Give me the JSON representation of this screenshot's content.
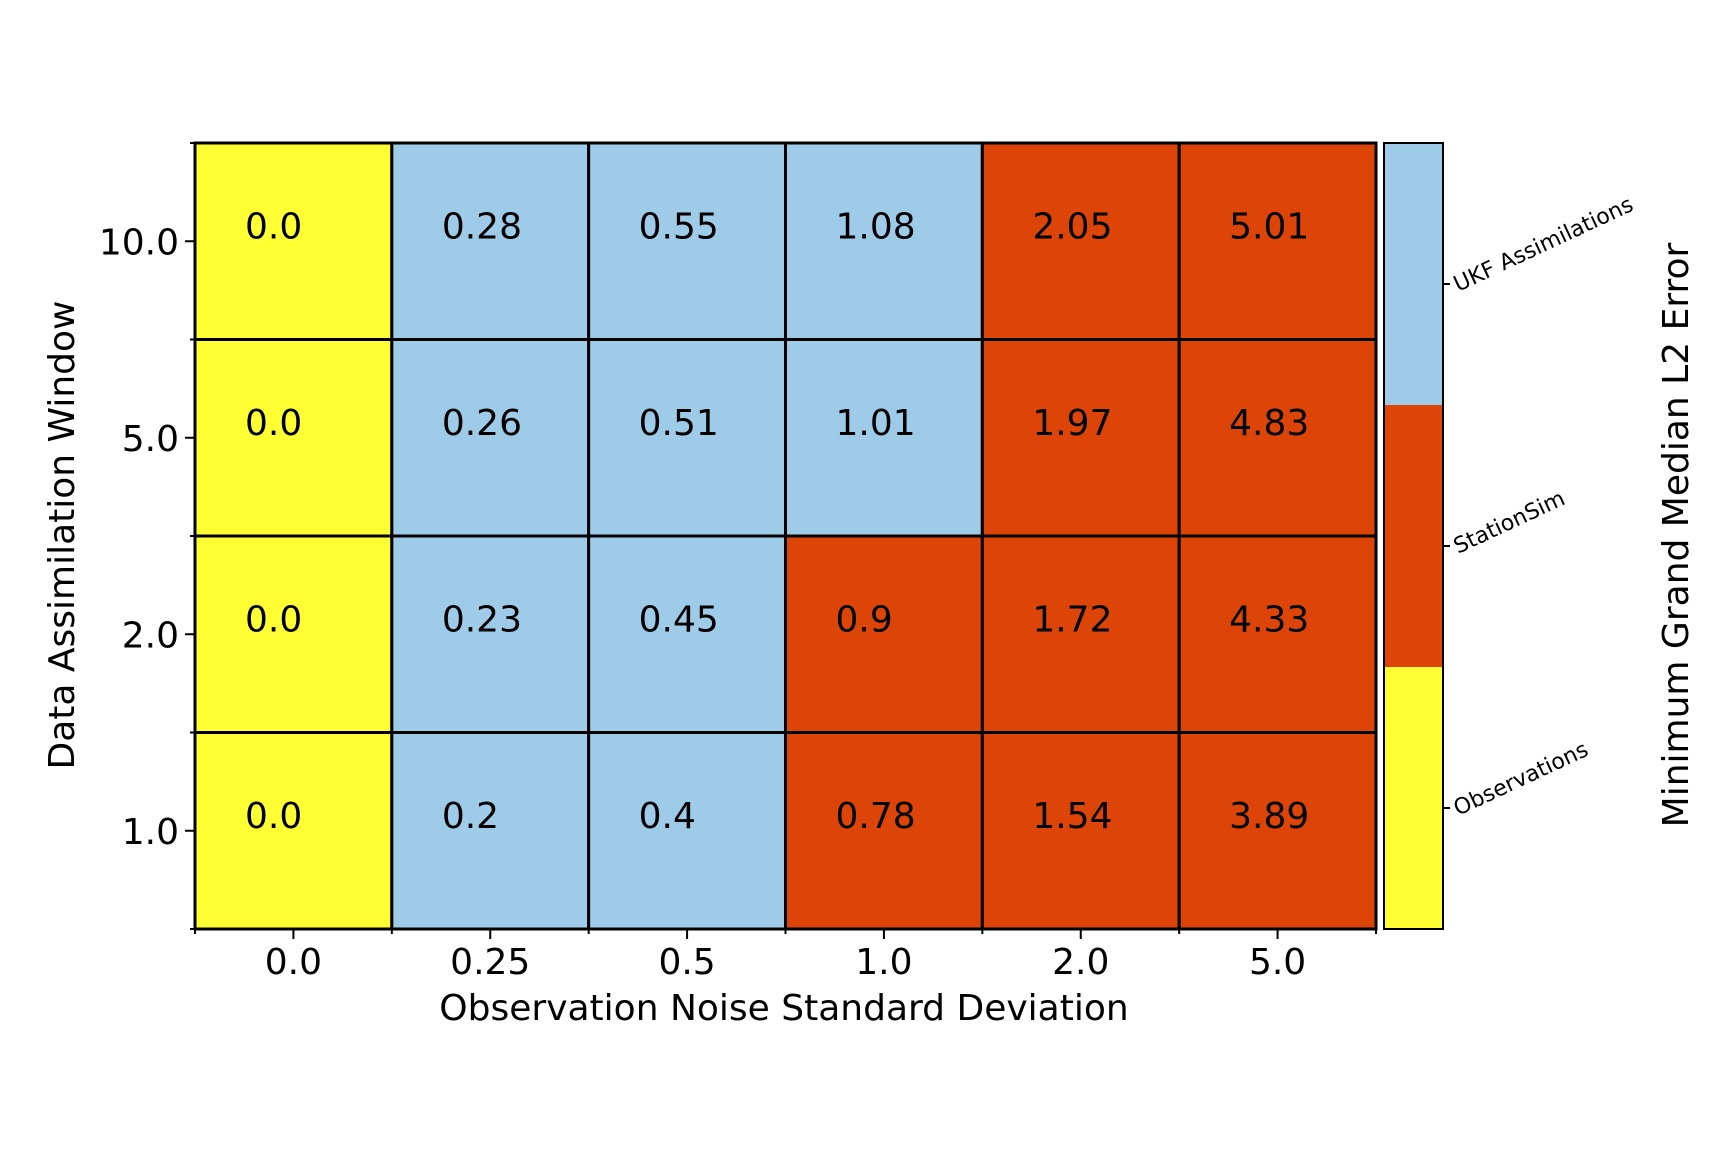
{
  "chart_data": {
    "type": "heatmap",
    "title": "",
    "xlabel": "Observation Noise Standard Deviation",
    "ylabel": "Data Assimilation Window",
    "x_categories": [
      "0.0",
      "0.25",
      "0.5",
      "1.0",
      "2.0",
      "5.0"
    ],
    "y_categories": [
      "10.0",
      "5.0",
      "2.0",
      "1.0"
    ],
    "values": [
      [
        "0.0",
        "0.28",
        "0.55",
        "1.08",
        "2.05",
        "5.01"
      ],
      [
        "0.0",
        "0.26",
        "0.51",
        "1.01",
        "1.97",
        "4.83"
      ],
      [
        "0.0",
        "0.23",
        "0.45",
        "0.9",
        "1.72",
        "4.33"
      ],
      [
        "0.0",
        "0.2",
        "0.4",
        "0.78",
        "1.54",
        "3.89"
      ]
    ],
    "classes": [
      [
        0,
        2,
        2,
        2,
        1,
        1
      ],
      [
        0,
        2,
        2,
        2,
        1,
        1
      ],
      [
        0,
        2,
        2,
        1,
        1,
        1
      ],
      [
        0,
        2,
        2,
        1,
        1,
        1
      ]
    ],
    "colorbar": {
      "label": "Minimum Grand Median L2 Error",
      "categories": [
        {
          "name": "Observations",
          "color": "#ffff33"
        },
        {
          "name": "StationSim",
          "color": "#dd4408"
        },
        {
          "name": "UKF Assimilations",
          "color": "#9ecbe8"
        }
      ]
    },
    "grid": true,
    "legend": "colorbar-right"
  }
}
